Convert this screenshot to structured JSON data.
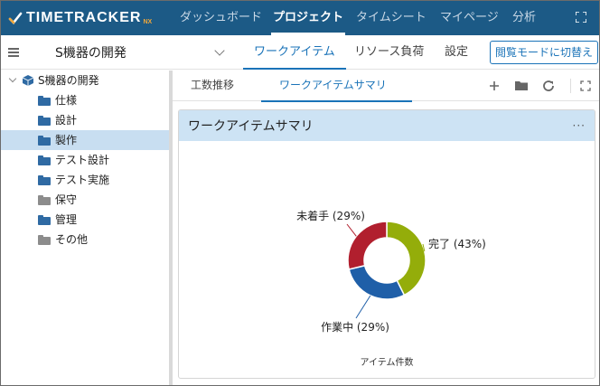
{
  "app": {
    "logo_text": "TIMETRACKER",
    "logo_suffix": "NX",
    "nav": [
      {
        "label": "ダッシュボード"
      },
      {
        "label": "プロジェクト"
      },
      {
        "label": "タイムシート"
      },
      {
        "label": "マイページ"
      },
      {
        "label": "分析"
      }
    ],
    "active_nav": "プロジェクト"
  },
  "subheader": {
    "project_name": "S機器の開発",
    "tabs": [
      {
        "label": "ワークアイテム"
      },
      {
        "label": "リソース負荷"
      },
      {
        "label": "設定"
      }
    ],
    "active_tab": "ワークアイテム",
    "browse_mode_button": "閲覧モードに切替え"
  },
  "tree": {
    "root": "S機器の開発",
    "items": [
      {
        "label": "仕様",
        "color": "#2f6aa3"
      },
      {
        "label": "設計",
        "color": "#2f6aa3"
      },
      {
        "label": "製作",
        "color": "#2f6aa3"
      },
      {
        "label": "テスト設計",
        "color": "#2f6aa3"
      },
      {
        "label": "テスト実施",
        "color": "#2f6aa3"
      },
      {
        "label": "保守",
        "color": "#8c8c8c"
      },
      {
        "label": "管理",
        "color": "#2f6aa3"
      },
      {
        "label": "その他",
        "color": "#8c8c8c"
      }
    ],
    "selected": "製作"
  },
  "main": {
    "tabs": [
      {
        "label": "工数推移"
      },
      {
        "label": "ワークアイテムサマリ"
      }
    ],
    "active_tab": "ワークアイテムサマリ",
    "toolbar_icons": [
      "plus-icon",
      "folder-icon",
      "refresh-icon",
      "fullscreen-icon"
    ],
    "panel": {
      "title": "ワークアイテムサマリ",
      "menu": "···"
    }
  },
  "chart_data": {
    "type": "pie",
    "donut": true,
    "xlabel": "アイテム件数",
    "slices": [
      {
        "label": "完了 (43%)",
        "value": 43,
        "color": "#94ad0a"
      },
      {
        "label": "作業中 (29%)",
        "value": 29,
        "color": "#1f5fa8"
      },
      {
        "label": "未着手 (29%)",
        "value": 29,
        "color": "#b11f2e"
      }
    ]
  },
  "colors": {
    "nav_bg": "#1c5a86",
    "accent": "#1a73b8",
    "selected_row": "#c8def1",
    "panel_header": "#cde3f4"
  }
}
